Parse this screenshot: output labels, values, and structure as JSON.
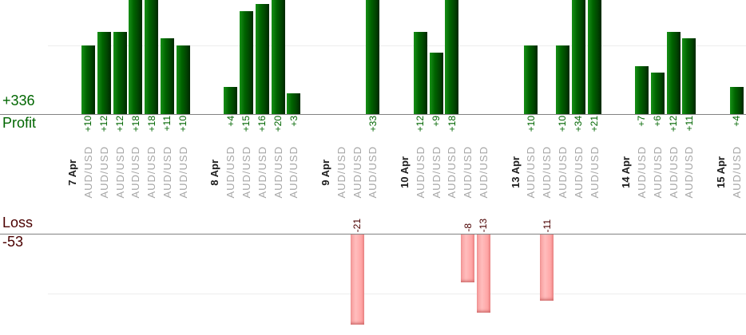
{
  "chart_data": {
    "type": "bar",
    "profit": {
      "label": "Profit",
      "total": "+336"
    },
    "loss": {
      "label": "Loss",
      "total": "-53"
    },
    "gridlines": {
      "profit_at": 10,
      "loss_at": -10
    },
    "colors": {
      "profit_text": "#006600",
      "loss_text": "#4b0000",
      "profit_bar": "#006400",
      "loss_bar": "#ffb3b3",
      "axis": "#828282",
      "symbol_label": "#a6a6a6",
      "date_label": "#1c1c1c"
    },
    "groups": [
      {
        "date": "7 Apr",
        "trades": [
          {
            "symbol": "AUD/USD",
            "value": 10,
            "label": "+10"
          },
          {
            "symbol": "AUD/USD",
            "value": 12,
            "label": "+12"
          },
          {
            "symbol": "AUD/USD",
            "value": 12,
            "label": "+12"
          },
          {
            "symbol": "AUD/USD",
            "value": 18,
            "label": "+18"
          },
          {
            "symbol": "AUD/USD",
            "value": 18,
            "label": "+18"
          },
          {
            "symbol": "AUD/USD",
            "value": 11,
            "label": "+11"
          },
          {
            "symbol": "AUD/USD",
            "value": 10,
            "label": "+10"
          }
        ]
      },
      {
        "date": "8 Apr",
        "trades": [
          {
            "symbol": "AUD/USD",
            "value": 4,
            "label": "+4"
          },
          {
            "symbol": "AUD/USD",
            "value": 15,
            "label": "+15"
          },
          {
            "symbol": "AUD/USD",
            "value": 16,
            "label": "+16"
          },
          {
            "symbol": "AUD/USD",
            "value": 20,
            "label": "+20"
          },
          {
            "symbol": "AUD/USD",
            "value": 3,
            "label": "+3"
          }
        ]
      },
      {
        "date": "9 Apr",
        "trades": [
          {
            "symbol": "AUD/USD",
            "value": 0,
            "label": ""
          },
          {
            "symbol": "AUD/USD",
            "value": -21,
            "label": "-21"
          },
          {
            "symbol": "AUD/USD",
            "value": 33,
            "label": "+33"
          }
        ]
      },
      {
        "date": "10 Apr",
        "trades": [
          {
            "symbol": "AUD/USD",
            "value": 12,
            "label": "+12"
          },
          {
            "symbol": "AUD/USD",
            "value": 9,
            "label": "+9"
          },
          {
            "symbol": "AUD/USD",
            "value": 18,
            "label": "+18"
          },
          {
            "symbol": "AUD/USD",
            "value": -8,
            "label": "-8"
          },
          {
            "symbol": "AUD/USD",
            "value": -13,
            "label": "-13"
          }
        ]
      },
      {
        "date": "13 Apr",
        "trades": [
          {
            "symbol": "AUD/USD",
            "value": 10,
            "label": "+10"
          },
          {
            "symbol": "AUD/USD",
            "value": -11,
            "label": "-11"
          },
          {
            "symbol": "AUD/USD",
            "value": 10,
            "label": "+10"
          },
          {
            "symbol": "AUD/USD",
            "value": 34,
            "label": "+34"
          },
          {
            "symbol": "AUD/USD",
            "value": 21,
            "label": "+21"
          }
        ]
      },
      {
        "date": "14 Apr",
        "trades": [
          {
            "symbol": "AUD/USD",
            "value": 7,
            "label": "+7"
          },
          {
            "symbol": "AUD/USD",
            "value": 6,
            "label": "+6"
          },
          {
            "symbol": "AUD/USD",
            "value": 12,
            "label": "+12"
          },
          {
            "symbol": "AUD/USD",
            "value": 11,
            "label": "+11"
          }
        ]
      },
      {
        "date": "15 Apr",
        "trades": [
          {
            "symbol": "AUD/USD",
            "value": 4,
            "label": "+4"
          }
        ]
      }
    ]
  }
}
